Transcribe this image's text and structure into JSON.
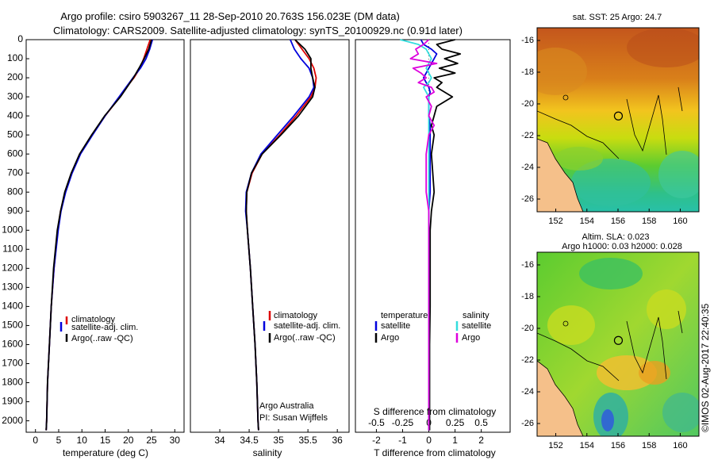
{
  "titles": {
    "line1": "Argo profile: csiro 5903267_11 28-Sep-2010 20.763S 156.023E (DM data)",
    "line2": "Climatology: CARS2009. Satellite-adjusted climatology: synTS_20100929.nc (0.91d later)"
  },
  "colors": {
    "climatology": "#dd0000",
    "satellite": "#0000dd",
    "argo": "#000000",
    "sal_sat": "#33dddd",
    "sal_argo": "#dd00dd"
  },
  "chart_data": [
    {
      "type": "line",
      "name": "temperature",
      "xlabel": "temperature (deg C)",
      "xlim": [
        -2,
        32
      ],
      "ylim": [
        2060,
        0
      ],
      "xticks": [
        0,
        5,
        10,
        15,
        20,
        25,
        30
      ],
      "yticks": [
        0,
        100,
        200,
        300,
        400,
        500,
        600,
        700,
        800,
        900,
        1000,
        1100,
        1200,
        1300,
        1400,
        1500,
        1600,
        1700,
        1800,
        1900,
        2000
      ],
      "depth": [
        0,
        50,
        100,
        150,
        200,
        250,
        300,
        400,
        500,
        600,
        700,
        800,
        900,
        1000,
        1200,
        1400,
        1600,
        1800,
        2000,
        2050
      ],
      "series": [
        {
          "name": "climatology",
          "values": [
            24.7,
            24.0,
            23.3,
            22.5,
            21.2,
            19.6,
            18.2,
            15.0,
            12.2,
            9.6,
            7.8,
            6.4,
            5.4,
            4.8,
            4.0,
            3.4,
            3.0,
            2.6,
            2.4,
            2.3
          ]
        },
        {
          "name": "satellite-adj. clim.",
          "values": [
            25.2,
            24.6,
            23.8,
            22.6,
            21.0,
            19.5,
            18.0,
            15.0,
            12.3,
            9.7,
            7.9,
            6.5,
            5.5,
            4.9,
            4.0,
            3.4,
            3.0,
            2.6,
            2.4,
            2.3
          ]
        },
        {
          "name": "Argo(..raw -QC)",
          "values": [
            25.0,
            24.4,
            23.4,
            22.3,
            21.1,
            19.7,
            18.3,
            14.9,
            12.1,
            9.5,
            7.7,
            6.3,
            5.4,
            4.7,
            3.9,
            3.4,
            3.0,
            2.6,
            2.4,
            2.3
          ]
        }
      ],
      "legend": [
        "climatology",
        "satellite-adj. clim.",
        "Argo(..raw -QC)"
      ]
    },
    {
      "type": "line",
      "name": "salinity",
      "xlabel": "salinity",
      "xlim": [
        33.5,
        36.2
      ],
      "ylim": [
        2060,
        0
      ],
      "xticks": [
        34,
        34.5,
        35,
        35.5,
        36
      ],
      "depth": [
        0,
        50,
        100,
        150,
        200,
        250,
        300,
        400,
        500,
        600,
        700,
        800,
        900,
        1000,
        1200,
        1400,
        1600,
        1800,
        2000,
        2050
      ],
      "series": [
        {
          "name": "climatology",
          "values": [
            35.28,
            35.4,
            35.52,
            35.6,
            35.64,
            35.62,
            35.55,
            35.3,
            35.02,
            34.72,
            34.55,
            34.46,
            34.45,
            34.47,
            34.52,
            34.56,
            34.6,
            34.63,
            34.65,
            34.66
          ]
        },
        {
          "name": "satellite-adj. clim.",
          "values": [
            35.2,
            35.27,
            35.38,
            35.52,
            35.58,
            35.6,
            35.52,
            35.26,
            34.98,
            34.7,
            34.54,
            34.45,
            34.44,
            34.47,
            34.52,
            34.56,
            34.6,
            34.63,
            34.65,
            34.66
          ]
        },
        {
          "name": "Argo(..raw -QC)",
          "values": [
            35.28,
            35.45,
            35.55,
            35.55,
            35.58,
            35.62,
            35.58,
            35.34,
            35.04,
            34.72,
            34.54,
            34.46,
            34.45,
            34.47,
            34.52,
            34.56,
            34.6,
            34.63,
            34.65,
            34.66
          ]
        }
      ],
      "legend": [
        "climatology",
        "satellite-adj. clim.",
        "Argo(..raw -QC)"
      ],
      "annotation": [
        "Argo Australia",
        "PI: Susan Wijffels"
      ]
    },
    {
      "type": "line",
      "name": "difference",
      "xlabel": "T difference from climatology",
      "toplabel": "S difference from climatology",
      "xlim": [
        -2.8,
        3.1
      ],
      "ylim": [
        2060,
        0
      ],
      "xticks": [
        -2,
        -1,
        0,
        1,
        2
      ],
      "top_ticks": [
        "-0.5",
        "-0.25",
        "0",
        "0.25",
        "0.5"
      ],
      "top_tick_values": [
        -2,
        -1,
        0,
        1,
        2
      ],
      "depth": [
        0,
        25,
        50,
        75,
        100,
        125,
        150,
        175,
        200,
        225,
        250,
        275,
        300,
        350,
        400,
        450,
        500,
        600,
        700,
        800,
        900,
        1000,
        1200,
        1400,
        1600,
        1800,
        2000,
        2050
      ],
      "series": [
        {
          "name": "temperature satellite",
          "group": "temperature",
          "values": [
            -0.3,
            -0.2,
            0.1,
            0.3,
            0.2,
            0.1,
            0.0,
            -0.1,
            -0.2,
            -0.1,
            0.0,
            0.05,
            0.0,
            0.0,
            0.0,
            0.05,
            0.05,
            0.05,
            0.05,
            0.05,
            0.0,
            0.0,
            0.0,
            0.0,
            0.0,
            0.0,
            0.0,
            0.0
          ]
        },
        {
          "name": "temperature Argo",
          "group": "temperature",
          "values": [
            1.0,
            0.3,
            0.5,
            1.2,
            0.6,
            1.1,
            0.4,
            1.0,
            0.2,
            0.5,
            0.3,
            0.6,
            0.9,
            0.3,
            0.2,
            0.1,
            0.2,
            0.1,
            0.15,
            0.2,
            0.1,
            0.05,
            0.05,
            0.05,
            0.03,
            0.03,
            0.03,
            0.03
          ]
        },
        {
          "name": "salinity satellite",
          "group": "salinity",
          "values": [
            -1.1,
            -0.4,
            -0.1,
            0.0,
            0.1,
            0.0,
            -0.1,
            0.0,
            0.1,
            0.0,
            -0.2,
            -0.1,
            0.0,
            0.0,
            0.0,
            0.0,
            0.0,
            0.0,
            0.0,
            0.0,
            0.0,
            0.0,
            0.0,
            0.0,
            0.0,
            0.0,
            0.0,
            0.0
          ]
        },
        {
          "name": "salinity Argo",
          "group": "salinity",
          "values": [
            0.0,
            -0.2,
            -0.5,
            -0.4,
            -0.7,
            0.3,
            -0.6,
            -0.3,
            -0.1,
            -0.4,
            0.1,
            0.2,
            -0.1,
            0.1,
            0.0,
            0.2,
            0.0,
            -0.1,
            -0.1,
            -0.1,
            0.0,
            0.0,
            0.0,
            0.0,
            0.0,
            0.0,
            0.0,
            0.0
          ]
        }
      ],
      "legend_temperature": {
        "head": "temperature",
        "items": [
          "satellite",
          "Argo"
        ]
      },
      "legend_salinity": {
        "head": "salinity",
        "items": [
          "satellite",
          "Argo"
        ]
      }
    },
    {
      "type": "heatmap",
      "name": "sst-map",
      "title": "sat. SST: 25 Argo: 24.7",
      "xlim": [
        150.8,
        161.2
      ],
      "ylim": [
        -26.8,
        -15.2
      ],
      "xticks": [
        152,
        154,
        156,
        158,
        160
      ],
      "yticks": [
        -16,
        -18,
        -20,
        -22,
        -24,
        -26
      ],
      "float_position": {
        "lon": 156.023,
        "lat": -20.763
      }
    },
    {
      "type": "heatmap",
      "name": "sla-map",
      "title_line1": "Altim. SLA: 0.023",
      "title_line2": "Argo h1000: 0.03 h2000: 0.028",
      "xlim": [
        150.8,
        161.2
      ],
      "ylim": [
        -26.8,
        -15.2
      ],
      "xticks": [
        152,
        154,
        156,
        158,
        160
      ],
      "yticks": [
        -16,
        -18,
        -20,
        -22,
        -24,
        -26
      ],
      "float_position": {
        "lon": 156.023,
        "lat": -20.763
      }
    }
  ],
  "side_credit": "©IMOS 02-Aug-2017 22:40:35"
}
